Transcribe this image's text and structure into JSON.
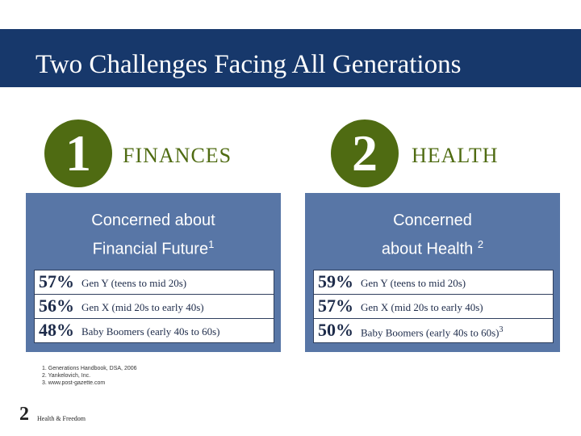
{
  "title": "Two Challenges Facing All Generations",
  "challenges": [
    {
      "number": "1",
      "heading": "FINANCES",
      "panel_title_line1": "Concerned about",
      "panel_title_line2": "Financial Future",
      "panel_title_sup": "1",
      "rows": [
        {
          "pct": "57%",
          "label": "Gen Y (teens to mid 20s)",
          "sup": ""
        },
        {
          "pct": "56%",
          "label": "Gen X (mid 20s to early 40s)",
          "sup": ""
        },
        {
          "pct": "48%",
          "label": "Baby Boomers (early 40s to 60s)",
          "sup": ""
        }
      ]
    },
    {
      "number": "2",
      "heading": "HEALTH",
      "panel_title_line1": "Concerned",
      "panel_title_line2": "about Health ",
      "panel_title_sup": "2",
      "rows": [
        {
          "pct": "59%",
          "label": "Gen Y (teens to mid 20s)",
          "sup": ""
        },
        {
          "pct": "57%",
          "label": "Gen X (mid 20s to early 40s)",
          "sup": ""
        },
        {
          "pct": "50%",
          "label": "Baby Boomers (early 40s to 60s)",
          "sup": "3"
        }
      ]
    }
  ],
  "footnotes": [
    "1. Generations Handbook, DSA, 2006",
    "2. Yankelovich, Inc.",
    "3. www.post-gazette.com"
  ],
  "footer": {
    "page_number": "2",
    "label": "Health & Freedom"
  },
  "colors": {
    "title_bar": "#17386b",
    "badge": "#4f6b12",
    "panel": "#5876a6"
  }
}
